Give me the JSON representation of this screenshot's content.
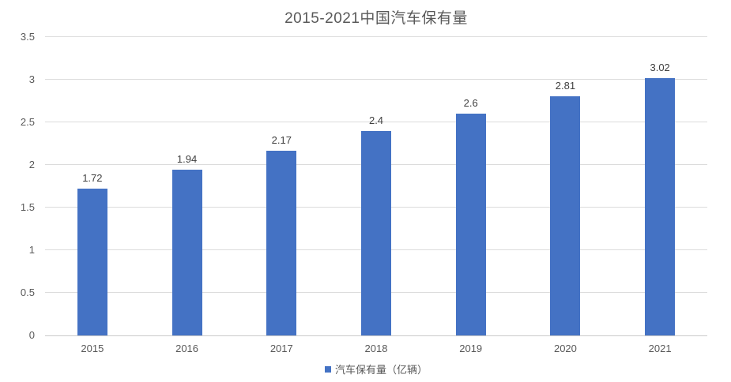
{
  "title": "2015-2021中国汽车保有量",
  "legend": {
    "label": "汽车保有量（亿辆）"
  },
  "colors": {
    "bar": "#4472c4",
    "title_text": "#595959",
    "axis_text": "#595959",
    "data_label_text": "#404040",
    "gridline": "#dcdcdc",
    "axis_line": "#c9c9c9"
  },
  "chart_data": {
    "type": "bar",
    "title": "2015-2021中国汽车保有量",
    "categories": [
      "2015",
      "2016",
      "2017",
      "2018",
      "2019",
      "2020",
      "2021"
    ],
    "series": [
      {
        "name": "汽车保有量（亿辆）",
        "values": [
          1.72,
          1.94,
          2.17,
          2.4,
          2.6,
          2.81,
          3.02
        ]
      }
    ],
    "value_labels": [
      "1.72",
      "1.94",
      "2.17",
      "2.4",
      "2.6",
      "2.81",
      "3.02"
    ],
    "xlabel": "",
    "ylabel": "",
    "ylim": [
      0,
      3.5
    ],
    "y_ticks": [
      0,
      0.5,
      1,
      1.5,
      2,
      2.5,
      3,
      3.5
    ],
    "y_tick_labels": [
      "0",
      "0.5",
      "1",
      "1.5",
      "2",
      "2.5",
      "3",
      "3.5"
    ],
    "grid": true,
    "legend_position": "bottom",
    "bar_color": "#4472c4"
  }
}
